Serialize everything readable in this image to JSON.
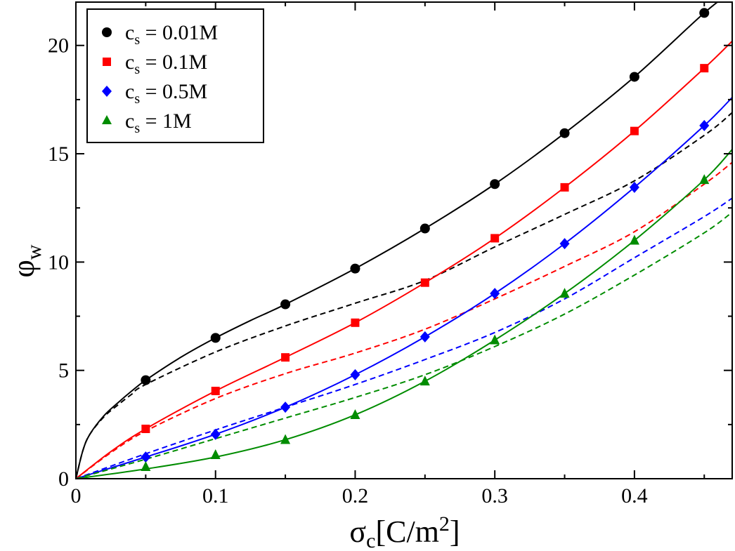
{
  "chart_data": {
    "type": "line",
    "xlabel": "σc[C/m²]",
    "xlabel_main": "σ",
    "xlabel_sub": "c",
    "xlabel_rest": "[C/m",
    "xlabel_sup": "2",
    "xlabel_close": "]",
    "ylabel": "φw",
    "ylabel_main": "φ",
    "ylabel_sub": "w",
    "xlim": [
      0,
      0.47
    ],
    "ylim": [
      0,
      22
    ],
    "x_ticks": [
      0,
      0.1,
      0.2,
      0.3,
      0.4
    ],
    "x_tick_labels": [
      "0",
      "0.1",
      "0.2",
      "0.3",
      "0.4"
    ],
    "y_ticks": [
      0,
      5,
      10,
      15,
      20
    ],
    "y_tick_labels": [
      "0",
      "5",
      "10",
      "15",
      "20"
    ],
    "legend_position": "top-left",
    "series": [
      {
        "name": "cs = 0.01M",
        "label_main": "c",
        "label_sub": "s",
        "label_rest": " = 0.01M",
        "color": "#000000",
        "marker": "circle",
        "x": [
          0.05,
          0.1,
          0.15,
          0.2,
          0.25,
          0.3,
          0.35,
          0.4,
          0.45
        ],
        "y": [
          4.55,
          6.5,
          8.05,
          9.7,
          11.55,
          13.6,
          15.95,
          18.55,
          21.5
        ],
        "fit_solid": [
          [
            0,
            0
          ],
          [
            0.005,
            1.3
          ],
          [
            0.01,
            2.05
          ],
          [
            0.02,
            2.9
          ],
          [
            0.03,
            3.5
          ],
          [
            0.04,
            4.05
          ],
          [
            0.05,
            4.55
          ],
          [
            0.075,
            5.6
          ],
          [
            0.1,
            6.5
          ],
          [
            0.125,
            7.3
          ],
          [
            0.15,
            8.05
          ],
          [
            0.2,
            9.7
          ],
          [
            0.25,
            11.55
          ],
          [
            0.3,
            13.6
          ],
          [
            0.35,
            15.95
          ],
          [
            0.4,
            18.55
          ],
          [
            0.45,
            21.5
          ],
          [
            0.47,
            22.5
          ]
        ],
        "fit_dashed": [
          [
            0,
            0
          ],
          [
            0.005,
            1.3
          ],
          [
            0.01,
            2.05
          ],
          [
            0.02,
            2.85
          ],
          [
            0.03,
            3.4
          ],
          [
            0.04,
            3.9
          ],
          [
            0.05,
            4.35
          ],
          [
            0.1,
            5.85
          ],
          [
            0.15,
            7.05
          ],
          [
            0.2,
            8.1
          ],
          [
            0.25,
            9.15
          ],
          [
            0.3,
            10.7
          ],
          [
            0.35,
            12.2
          ],
          [
            0.4,
            13.75
          ],
          [
            0.45,
            15.85
          ],
          [
            0.47,
            16.9
          ]
        ]
      },
      {
        "name": "cs = 0.1M",
        "label_main": "c",
        "label_sub": "s",
        "label_rest": " = 0.1M",
        "color": "#ff0000",
        "marker": "square",
        "x": [
          0.05,
          0.1,
          0.15,
          0.2,
          0.25,
          0.3,
          0.35,
          0.4,
          0.45
        ],
        "y": [
          2.3,
          4.05,
          5.6,
          7.2,
          9.05,
          11.1,
          13.45,
          16.05,
          18.95
        ],
        "fit_solid": [
          [
            0,
            0
          ],
          [
            0.025,
            1.25
          ],
          [
            0.05,
            2.3
          ],
          [
            0.1,
            4.05
          ],
          [
            0.15,
            5.6
          ],
          [
            0.2,
            7.2
          ],
          [
            0.25,
            9.05
          ],
          [
            0.3,
            11.1
          ],
          [
            0.35,
            13.45
          ],
          [
            0.4,
            16.05
          ],
          [
            0.45,
            18.95
          ],
          [
            0.47,
            20.2
          ]
        ],
        "fit_dashed": [
          [
            0,
            0
          ],
          [
            0.025,
            1.2
          ],
          [
            0.05,
            2.2
          ],
          [
            0.1,
            3.7
          ],
          [
            0.15,
            4.85
          ],
          [
            0.2,
            5.8
          ],
          [
            0.25,
            6.9
          ],
          [
            0.3,
            8.3
          ],
          [
            0.35,
            9.8
          ],
          [
            0.4,
            11.4
          ],
          [
            0.45,
            13.6
          ],
          [
            0.47,
            14.6
          ]
        ]
      },
      {
        "name": "cs = 0.5M",
        "label_main": "c",
        "label_sub": "s",
        "label_rest": " = 0.5M",
        "color": "#0000ff",
        "marker": "diamond",
        "x": [
          0.05,
          0.1,
          0.15,
          0.2,
          0.25,
          0.3,
          0.35,
          0.4,
          0.45
        ],
        "y": [
          1.0,
          2.05,
          3.3,
          4.8,
          6.55,
          8.55,
          10.85,
          13.45,
          16.3
        ],
        "fit_solid": [
          [
            0,
            0
          ],
          [
            0.05,
            1.0
          ],
          [
            0.1,
            2.05
          ],
          [
            0.15,
            3.3
          ],
          [
            0.2,
            4.8
          ],
          [
            0.25,
            6.55
          ],
          [
            0.3,
            8.55
          ],
          [
            0.35,
            10.85
          ],
          [
            0.4,
            13.45
          ],
          [
            0.45,
            16.3
          ],
          [
            0.47,
            17.6
          ]
        ],
        "fit_dashed": [
          [
            0,
            0
          ],
          [
            0.05,
            1.15
          ],
          [
            0.1,
            2.25
          ],
          [
            0.15,
            3.3
          ],
          [
            0.2,
            4.35
          ],
          [
            0.25,
            5.5
          ],
          [
            0.3,
            6.75
          ],
          [
            0.35,
            8.3
          ],
          [
            0.4,
            10.2
          ],
          [
            0.45,
            12.1
          ],
          [
            0.47,
            12.95
          ]
        ]
      },
      {
        "name": "cs = 1M",
        "label_main": "c",
        "label_sub": "s",
        "label_rest": " = 1M",
        "color": "#008c00",
        "marker": "triangle",
        "x": [
          0.05,
          0.1,
          0.15,
          0.2,
          0.25,
          0.3,
          0.35,
          0.4,
          0.45
        ],
        "y": [
          0.55,
          1.1,
          1.8,
          2.95,
          4.5,
          6.4,
          8.55,
          11.0,
          13.8
        ],
        "fit_solid": [
          [
            0,
            0
          ],
          [
            0.05,
            0.45
          ],
          [
            0.1,
            1.0
          ],
          [
            0.15,
            1.8
          ],
          [
            0.2,
            2.95
          ],
          [
            0.25,
            4.5
          ],
          [
            0.3,
            6.4
          ],
          [
            0.35,
            8.55
          ],
          [
            0.4,
            11.0
          ],
          [
            0.45,
            13.8
          ],
          [
            0.47,
            15.2
          ]
        ],
        "fit_dashed": [
          [
            0,
            0
          ],
          [
            0.05,
            0.9
          ],
          [
            0.1,
            1.85
          ],
          [
            0.15,
            2.8
          ],
          [
            0.2,
            3.75
          ],
          [
            0.25,
            4.8
          ],
          [
            0.3,
            6.1
          ],
          [
            0.35,
            7.6
          ],
          [
            0.4,
            9.4
          ],
          [
            0.45,
            11.35
          ],
          [
            0.47,
            12.3
          ]
        ]
      }
    ]
  }
}
